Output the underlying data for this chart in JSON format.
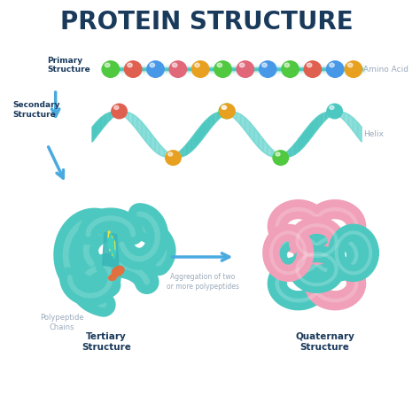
{
  "title": "PROTEIN STRUCTURE",
  "title_color": "#1a3a5c",
  "title_fontsize": 20,
  "bg_color": "#ffffff",
  "teal_color": "#4dc8c0",
  "teal_light": "#7adad5",
  "teal_ribbon": "#5ecece",
  "pink_color": "#f0a0b8",
  "pink_light": "#f5c0d0",
  "blue_arrow": "#4aaae0",
  "label_color": "#1a3a5c",
  "gray_label": "#9aaabb",
  "orange_accent": "#e07040",
  "labels": {
    "primary": "Primary\nStructure",
    "secondary": "Secondary\nStructure",
    "amino_acid": "Amino Acid",
    "helix": "Helix",
    "polypeptide": "Polypeptide\nChains",
    "tertiary": "Tertiary\nStructure",
    "aggregation": "Aggregation of two\nor more polypeptides",
    "quaternary": "Quaternary\nStructure"
  },
  "bead_colors_primary": [
    "#50c840",
    "#e06050",
    "#4898e8",
    "#e06878",
    "#e8a020",
    "#50c840",
    "#e06878",
    "#4898e8"
  ],
  "helix_top_colors": [
    "#e06050",
    "#50c840",
    "#e8a020",
    "#4dc8c0",
    "#e06050"
  ],
  "helix_bot_colors": [
    "#e8a020",
    "#50c840",
    "#e06050",
    "#4898e8",
    "#e8a020",
    "#4dc8c0"
  ]
}
